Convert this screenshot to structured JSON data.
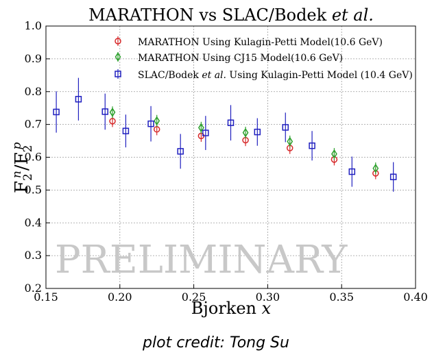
{
  "chart_data": {
    "type": "scatter",
    "title": "MARATHON vs SLAC/Bodek et al.",
    "title_parts": [
      "MARATHON vs SLAC/Bodek ",
      "et al."
    ],
    "xlabel": "Bjorken x",
    "xlabel_parts": [
      "Bjorken ",
      "x"
    ],
    "ylabel": "F2n/F2p",
    "ylabel_parts": {
      "F": "F",
      "sub": "2",
      "n": "n",
      "slash": "/",
      "p": "p"
    },
    "xlim": [
      0.15,
      0.4
    ],
    "ylim": [
      0.2,
      1.0
    ],
    "xticks": [
      0.15,
      0.2,
      0.25,
      0.3,
      0.35,
      0.4
    ],
    "xtick_labels": [
      "0.15",
      "0.20",
      "0.25",
      "0.30",
      "0.35",
      "0.40"
    ],
    "yticks": [
      0.2,
      0.3,
      0.4,
      0.5,
      0.6,
      0.7,
      0.8,
      0.9,
      1.0
    ],
    "ytick_labels": [
      "0.2",
      "0.3",
      "0.4",
      "0.5",
      "0.6",
      "0.7",
      "0.8",
      "0.9",
      "1.0"
    ],
    "grid": true,
    "legend_position": "top-right",
    "watermark": "PRELIMINARY",
    "series": [
      {
        "name": "MARATHON Using Kulagin-Petti Model(10.6 GeV)",
        "name_parts": [
          "MARATHON Using Kulagin-Petti Model(10.6 GeV)"
        ],
        "color": "#d62728",
        "marker": "circle",
        "x": [
          0.195,
          0.225,
          0.255,
          0.285,
          0.315,
          0.345,
          0.373
        ],
        "y": [
          0.71,
          0.685,
          0.665,
          0.652,
          0.628,
          0.593,
          0.551
        ],
        "yerr": [
          0.018,
          0.018,
          0.018,
          0.018,
          0.018,
          0.018,
          0.018
        ]
      },
      {
        "name": "MARATHON Using CJ15 Model(10.6 GeV)",
        "name_parts": [
          "MARATHON Using CJ15 Model(10.6 GeV)"
        ],
        "color": "#2ca02c",
        "marker": "diamond",
        "x": [
          0.195,
          0.225,
          0.255,
          0.285,
          0.315,
          0.345,
          0.373
        ],
        "y": [
          0.737,
          0.711,
          0.69,
          0.675,
          0.648,
          0.61,
          0.566
        ],
        "yerr": [
          0.018,
          0.018,
          0.018,
          0.018,
          0.018,
          0.018,
          0.018
        ]
      },
      {
        "name": "SLAC/Bodek et al. Using Kulagin-Petti Model (10.4 GeV)",
        "name_parts": [
          "SLAC/Bodek ",
          "et al.",
          " Using Kulagin-Petti Model (10.4 GeV)"
        ],
        "color": "#1f1fbf",
        "marker": "square",
        "x": [
          0.157,
          0.172,
          0.19,
          0.204,
          0.221,
          0.241,
          0.258,
          0.275,
          0.293,
          0.312,
          0.33,
          0.357,
          0.385
        ],
        "y": [
          0.738,
          0.777,
          0.739,
          0.68,
          0.702,
          0.618,
          0.674,
          0.705,
          0.677,
          0.691,
          0.635,
          0.556,
          0.54
        ],
        "yerr": [
          0.063,
          0.065,
          0.055,
          0.05,
          0.054,
          0.053,
          0.052,
          0.054,
          0.042,
          0.045,
          0.045,
          0.046,
          0.045
        ]
      }
    ]
  },
  "credit": "plot credit: Tong Su"
}
